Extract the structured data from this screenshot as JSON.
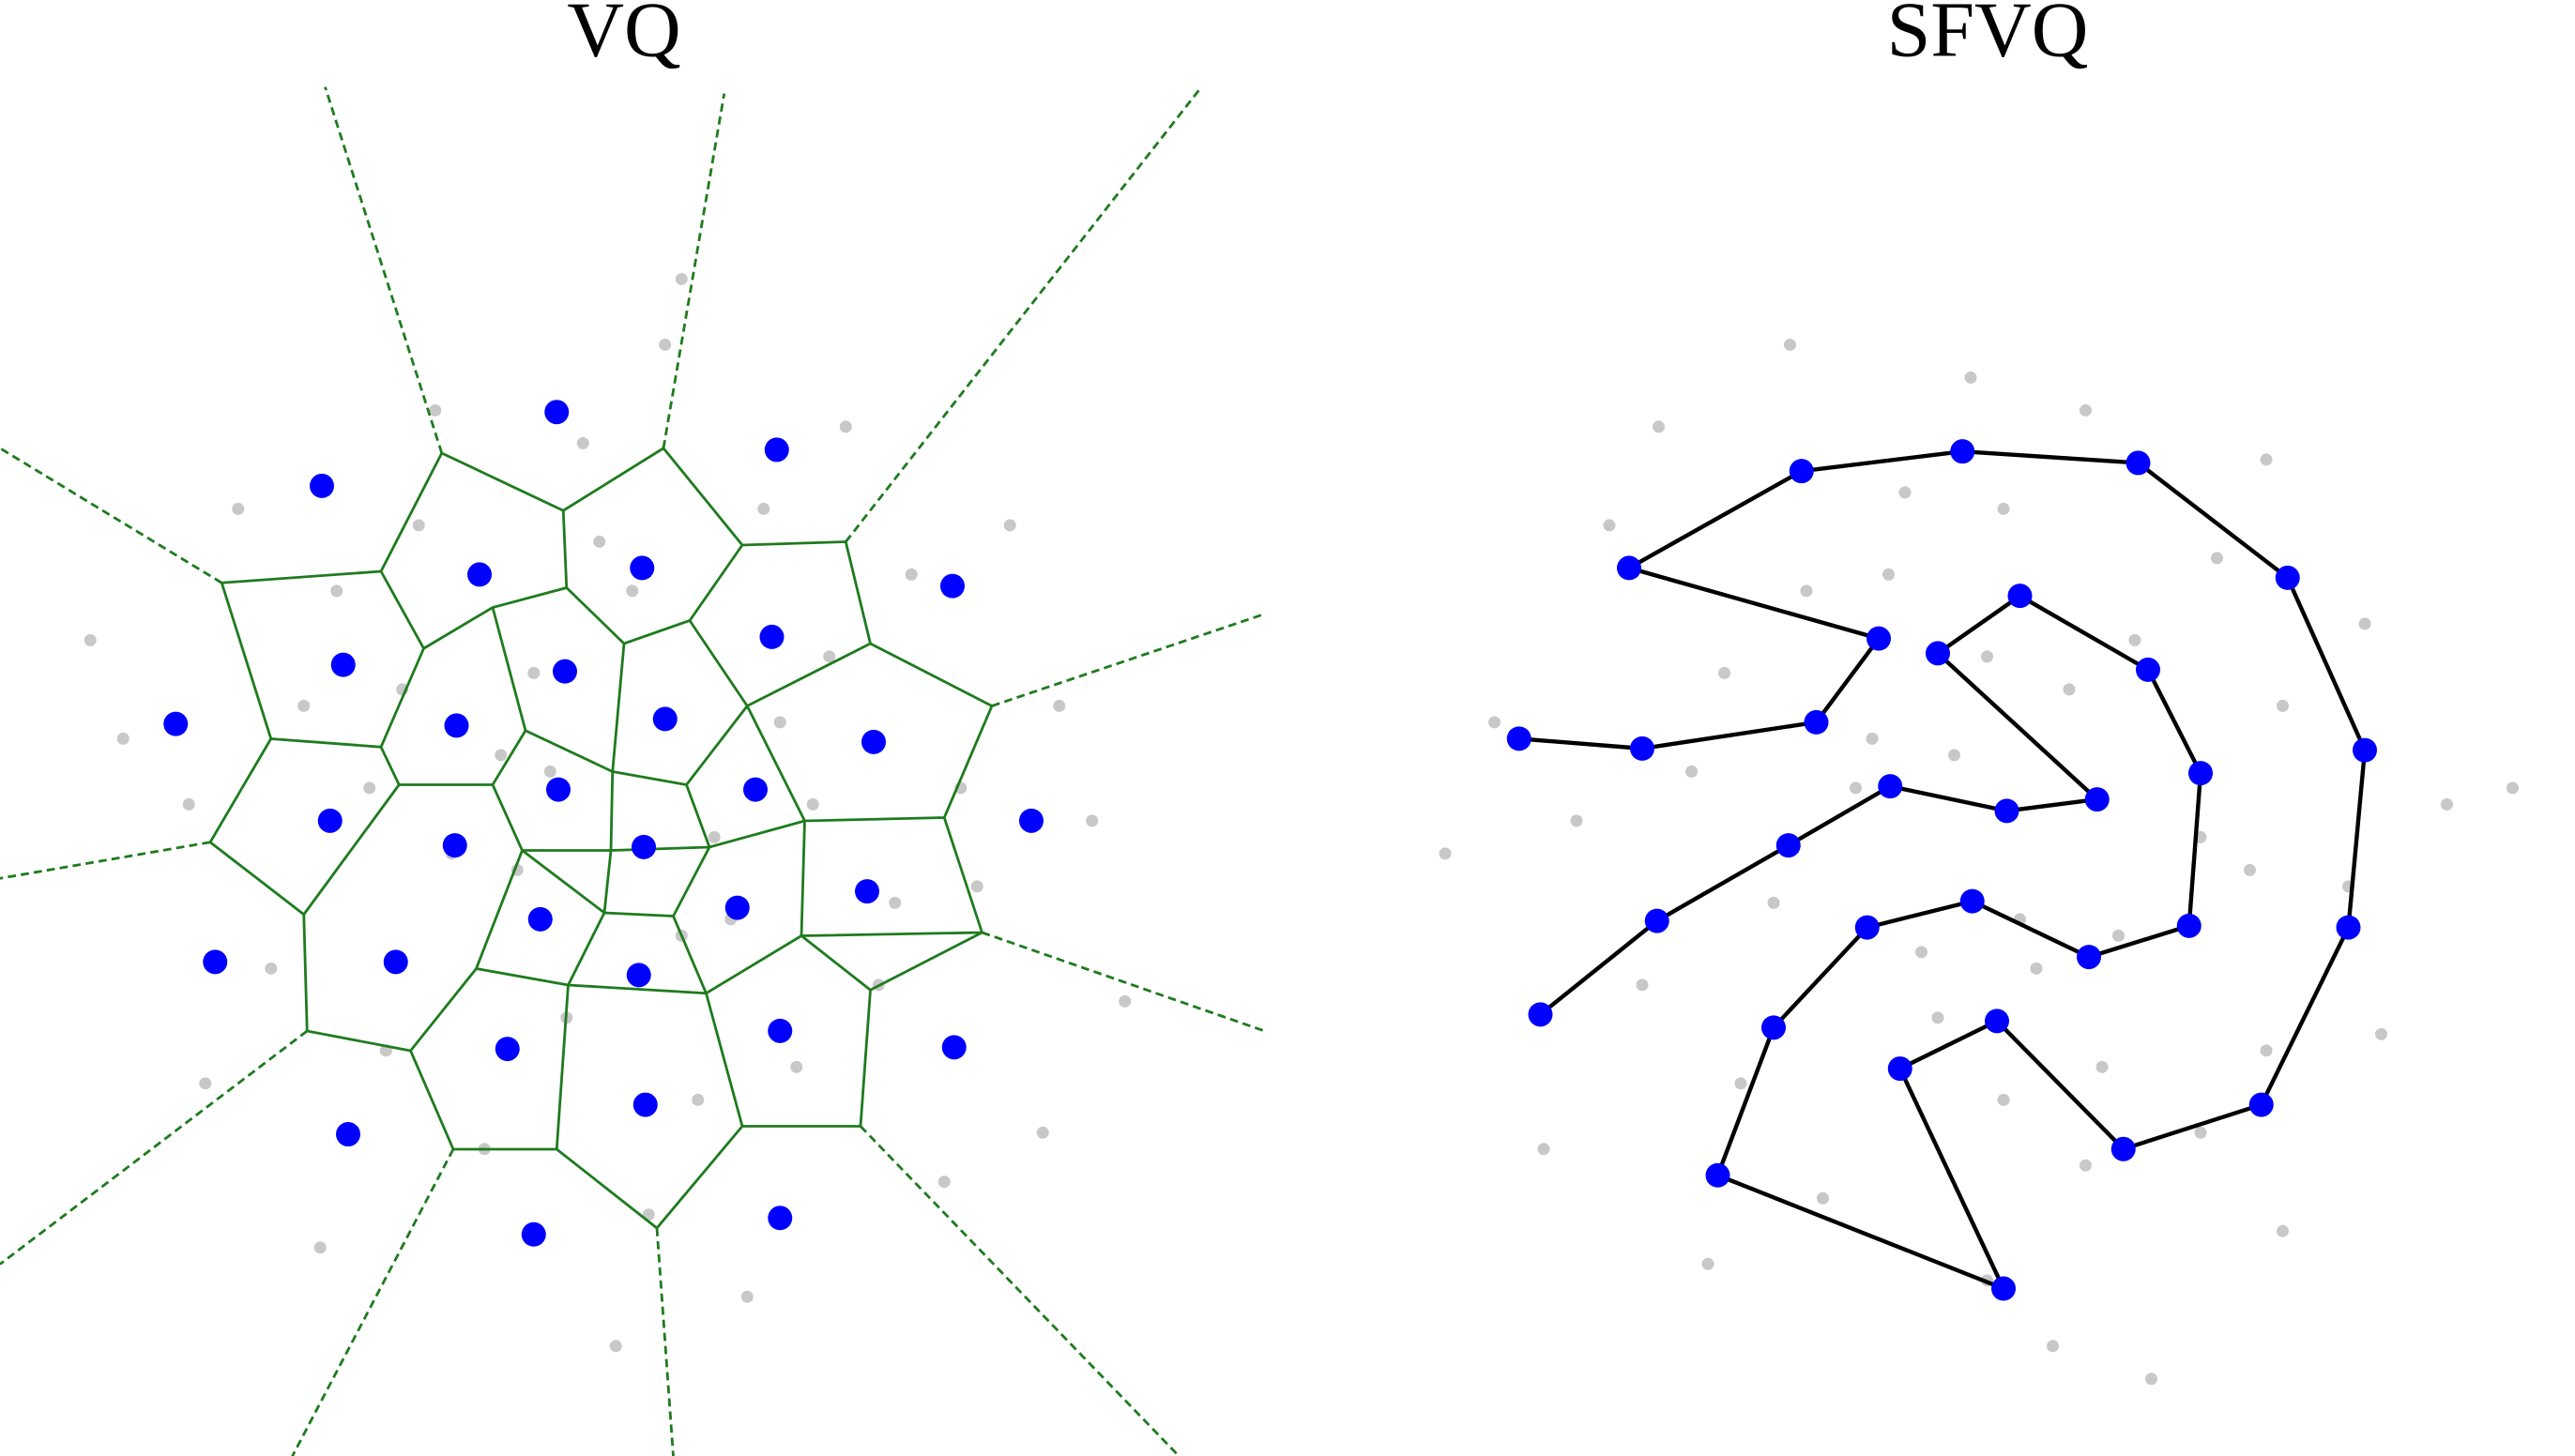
{
  "chart_data": [
    {
      "type": "scatter",
      "title": "VQ",
      "xlim": [
        -3.85,
        3.85
      ],
      "ylim": [
        -3.77,
        4.7
      ],
      "connect": false,
      "series": [
        {
          "color": "#c8c8c8",
          "x": [
            -0.5,
            0.3,
            1.2,
            -1.4,
            2.1,
            -2.2,
            0.8,
            -0.9,
            1.7,
            -1.8,
            0.1,
            -0.3,
            2.6,
            -2.7,
            1.0,
            -1.1,
            0.5,
            -0.6,
            1.5,
            -1.5,
            2.3,
            -2.4,
            0.2,
            -0.1,
            0.9,
            -0.8,
            1.9,
            -2.0,
            3.0,
            -3.1,
            0.6,
            -0.4,
            1.3,
            -1.2,
            2.0,
            -1.9,
            0.0,
            0.4,
            -0.7,
            1.1,
            -1.6,
            2.5,
            -2.6,
            0.7,
            -0.2,
            1.6,
            -1.3,
            2.8,
            -3.3,
            0.3
          ],
          "y": [
            0.4,
            -0.6,
            1.1,
            0.9,
            -0.3,
            -0.8,
            2.0,
            -1.9,
            1.6,
            1.5,
            -2.3,
            2.4,
            0.8,
            0.2,
            -1.4,
            -0.1,
            0.0,
            1.0,
            -0.9,
            -1.3,
            1.9,
            2.0,
            3.0,
            -3.1,
            0.7,
            0.5,
            -2.1,
            0.8,
            -1.0,
            0.6,
            -0.5,
            -1.1,
            2.5,
            2.6,
            0.3,
            -2.5,
            1.5,
            -1.6,
            -0.2,
            0.2,
            0.3,
            -1.8,
            -1.5,
            -2.8,
            1.8,
            -0.4,
            1.9,
            0.1,
            1.2,
            3.4
          ]
        },
        {
          "color": "#0000ff",
          "x": [
            -0.46,
            0.88,
            -1.89,
            -0.93,
            0.06,
            1.95,
            0.85,
            -1.76,
            -0.41,
            -2.78,
            -1.07,
            0.2,
            1.47,
            -0.45,
            0.75,
            -1.84,
            2.43,
            -1.08,
            0.07,
            1.43,
            0.64,
            -0.56,
            -2.54,
            -1.44,
            0.04,
            -0.76,
            0.9,
            1.96,
            -1.73,
            0.08,
            -0.6,
            0.9
          ],
          "y": [
            2.59,
            2.36,
            2.14,
            1.6,
            1.64,
            1.53,
            1.22,
            1.05,
            1.01,
            0.69,
            0.68,
            0.72,
            0.58,
            0.29,
            0.29,
            0.1,
            0.1,
            -0.05,
            -0.06,
            -0.33,
            -0.43,
            -0.5,
            -0.76,
            -0.76,
            -0.84,
            -1.29,
            -1.18,
            -1.28,
            -1.81,
            -1.63,
            -2.42,
            -2.32
          ]
        }
      ]
    },
    {
      "type": "scatter",
      "title": "SFVQ",
      "xlim": [
        -4.2,
        3.78
      ],
      "ylim": [
        -3.77,
        4.7
      ],
      "connect": true,
      "series": [
        {
          "color": "#c8c8c8",
          "x": [
            0.4,
            -0.6,
            1.1,
            0.9,
            -0.3,
            -0.8,
            2.0,
            -1.9,
            1.6,
            1.5,
            -2.3,
            2.4,
            0.8,
            0.2,
            -1.4,
            -0.1,
            0.0,
            1.0,
            -0.9,
            -1.3,
            1.9,
            2.0,
            3.0,
            -3.1,
            0.7,
            0.5,
            -2.1,
            0.8,
            -1.0,
            0.6,
            -0.5,
            -1.1,
            2.5,
            2.6,
            0.3,
            -2.5,
            1.5,
            -1.6,
            -0.2,
            0.2,
            0.3,
            -1.8,
            -1.5,
            -2.8,
            1.8,
            -0.4,
            1.9,
            0.1,
            1.2,
            3.4
          ],
          "y": [
            -0.5,
            0.3,
            1.2,
            -1.4,
            2.1,
            -2.2,
            0.8,
            -0.9,
            1.7,
            -1.8,
            0.1,
            -0.3,
            2.6,
            -2.7,
            1.0,
            -1.1,
            0.5,
            -0.6,
            1.5,
            -1.5,
            2.3,
            -2.4,
            0.2,
            -0.1,
            0.9,
            -0.8,
            1.9,
            -2.0,
            3.0,
            -3.1,
            0.6,
            -0.4,
            1.3,
            -1.2,
            2.0,
            -1.9,
            0.0,
            0.4,
            -0.7,
            1.1,
            -1.6,
            2.5,
            -2.6,
            0.7,
            -0.2,
            1.6,
            -1.3,
            2.8,
            -3.3,
            0.3
          ]
        },
        {
          "color": "#0000ff",
          "x": [
            -2.52,
            -1.81,
            -1.01,
            -0.39,
            0.32,
            0.87,
            -0.1,
            0.4,
            1.18,
            1.5,
            1.43,
            0.82,
            0.11,
            -0.53,
            -1.1,
            -1.44,
            0.3,
            -0.33,
            0.26,
            1.03,
            1.87,
            2.4,
            2.5,
            2.03,
            1.12,
            0.05,
            -0.93,
            -1.98,
            -0.46,
            -0.84,
            -1.9,
            -2.65
          ],
          "y": [
            -1.08,
            -0.51,
            -0.05,
            0.31,
            0.16,
            0.23,
            1.12,
            1.47,
            1.02,
            0.39,
            -0.54,
            -0.73,
            -0.39,
            -0.55,
            -1.16,
            -2.06,
            -2.75,
            -1.41,
            -1.12,
            -1.9,
            -1.63,
            -0.55,
            0.53,
            1.58,
            2.28,
            2.35,
            2.23,
            1.64,
            1.21,
            0.7,
            0.54,
            0.6
          ]
        }
      ]
    }
  ]
}
